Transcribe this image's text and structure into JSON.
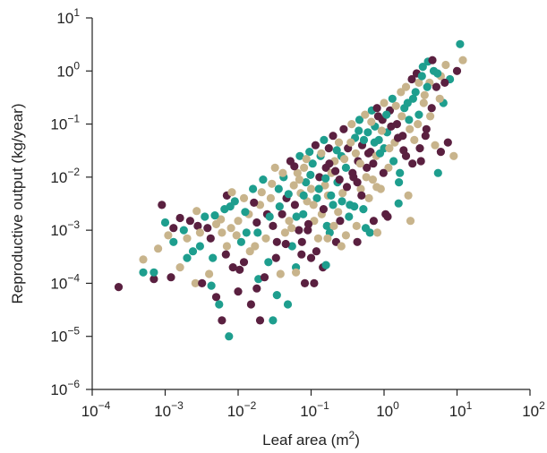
{
  "chart_data": {
    "type": "scatter",
    "title": "",
    "xlabel": "Leaf area (m",
    "xlabel_sup": "2",
    "xlabel_end": ")",
    "ylabel": "Reproductive output (kg/year)",
    "xscale": "log",
    "yscale": "log",
    "xlim": [
      0.0001,
      100
    ],
    "ylim": [
      1e-06,
      10
    ],
    "grid": false,
    "legend": "none",
    "x_ticks": [
      {
        "base": "10",
        "exp": "−4",
        "value": 0.0001
      },
      {
        "base": "10",
        "exp": "−3",
        "value": 0.001
      },
      {
        "base": "10",
        "exp": "−2",
        "value": 0.01
      },
      {
        "base": "10",
        "exp": "−1",
        "value": 0.1
      },
      {
        "base": "10",
        "exp": "0",
        "value": 1
      },
      {
        "base": "10",
        "exp": "1",
        "value": 10
      },
      {
        "base": "10",
        "exp": "2",
        "value": 100
      }
    ],
    "y_ticks": [
      {
        "base": "10",
        "exp": "−6",
        "value": 1e-06
      },
      {
        "base": "10",
        "exp": "−5",
        "value": 1e-05
      },
      {
        "base": "10",
        "exp": "−4",
        "value": 0.0001
      },
      {
        "base": "10",
        "exp": "−3",
        "value": 0.001
      },
      {
        "base": "10",
        "exp": "−2",
        "value": 0.01
      },
      {
        "base": "10",
        "exp": "−1",
        "value": 0.1
      },
      {
        "base": "10",
        "exp": "0",
        "value": 1
      },
      {
        "base": "10",
        "exp": "1",
        "value": 10
      }
    ],
    "colors": [
      "#5a2040",
      "#e6c84b",
      "#8aa04c",
      "#2f8b5b",
      "#e05a8a",
      "#cc5c7e",
      "#3aa6d8",
      "#1e9e8e",
      "#e08a3c",
      "#9b7bc0",
      "#b0b0b0",
      "#d8a0c0",
      "#6c8a2c",
      "#3c5c6c",
      "#c8b48c",
      "#88c8e8",
      "#e85a3c",
      "#0f5a3c",
      "#2c6cb8",
      "#d4d860",
      "#a05c9c",
      "#6cc85c"
    ],
    "points": [
      {
        "x": 0.00023,
        "y": 8.5e-05
      },
      {
        "x": 0.0005,
        "y": 0.00016
      },
      {
        "x": 0.0005,
        "y": 0.00028
      },
      {
        "x": 0.0007,
        "y": 0.00012
      },
      {
        "x": 0.0007,
        "y": 0.00016
      },
      {
        "x": 0.0008,
        "y": 0.00045
      },
      {
        "x": 0.0009,
        "y": 0.003
      },
      {
        "x": 0.001,
        "y": 0.0014
      },
      {
        "x": 0.0011,
        "y": 0.0008
      },
      {
        "x": 0.0013,
        "y": 0.0011
      },
      {
        "x": 0.0013,
        "y": 0.0006
      },
      {
        "x": 0.0016,
        "y": 0.0002
      },
      {
        "x": 0.0016,
        "y": 0.0017
      },
      {
        "x": 0.0018,
        "y": 0.001
      },
      {
        "x": 0.002,
        "y": 0.0007
      },
      {
        "x": 0.0022,
        "y": 0.0015
      },
      {
        "x": 0.0024,
        "y": 0.0004
      },
      {
        "x": 0.0026,
        "y": 0.0001
      },
      {
        "x": 0.0028,
        "y": 0.0012
      },
      {
        "x": 0.003,
        "y": 0.0005
      },
      {
        "x": 0.003,
        "y": 0.0009
      },
      {
        "x": 0.0032,
        "y": 0.0001
      },
      {
        "x": 0.0035,
        "y": 0.0018
      },
      {
        "x": 0.004,
        "y": 0.00015
      },
      {
        "x": 0.0042,
        "y": 0.0007
      },
      {
        "x": 0.0045,
        "y": 0.0003
      },
      {
        "x": 0.005,
        "y": 0.0013
      },
      {
        "x": 0.005,
        "y": 5.5e-05
      },
      {
        "x": 0.0055,
        "y": 4e-05
      },
      {
        "x": 0.006,
        "y": 0.0009
      },
      {
        "x": 0.006,
        "y": 2e-05
      },
      {
        "x": 0.0065,
        "y": 0.0025
      },
      {
        "x": 0.007,
        "y": 0.0005
      },
      {
        "x": 0.007,
        "y": 0.0045
      },
      {
        "x": 0.0075,
        "y": 1e-05
      },
      {
        "x": 0.008,
        "y": 0.0011
      },
      {
        "x": 0.0085,
        "y": 0.0002
      },
      {
        "x": 0.009,
        "y": 0.0035
      },
      {
        "x": 0.01,
        "y": 0.0015
      },
      {
        "x": 0.01,
        "y": 7e-05
      },
      {
        "x": 0.011,
        "y": 0.0006
      },
      {
        "x": 0.012,
        "y": 0.004
      },
      {
        "x": 0.012,
        "y": 0.00025
      },
      {
        "x": 0.013,
        "y": 0.0009
      },
      {
        "x": 0.014,
        "y": 0.002
      },
      {
        "x": 0.015,
        "y": 4e-05
      },
      {
        "x": 0.016,
        "y": 0.006
      },
      {
        "x": 0.017,
        "y": 0.0005
      },
      {
        "x": 0.018,
        "y": 0.0014
      },
      {
        "x": 0.019,
        "y": 0.00012
      },
      {
        "x": 0.02,
        "y": 0.003
      },
      {
        "x": 0.02,
        "y": 2e-05
      },
      {
        "x": 0.022,
        "y": 0.009
      },
      {
        "x": 0.024,
        "y": 0.0007
      },
      {
        "x": 0.025,
        "y": 0.002
      },
      {
        "x": 0.026,
        "y": 0.00025
      },
      {
        "x": 0.028,
        "y": 0.004
      },
      {
        "x": 0.03,
        "y": 0.0012
      },
      {
        "x": 0.03,
        "y": 2e-05
      },
      {
        "x": 0.032,
        "y": 0.015
      },
      {
        "x": 0.034,
        "y": 0.0006
      },
      {
        "x": 0.036,
        "y": 0.006
      },
      {
        "x": 0.038,
        "y": 0.00015
      },
      {
        "x": 0.04,
        "y": 0.002
      },
      {
        "x": 0.042,
        "y": 0.01
      },
      {
        "x": 0.044,
        "y": 0.0009
      },
      {
        "x": 0.046,
        "y": 0.004
      },
      {
        "x": 0.048,
        "y": 4e-05
      },
      {
        "x": 0.05,
        "y": 0.0015
      },
      {
        "x": 0.052,
        "y": 0.02
      },
      {
        "x": 0.055,
        "y": 0.0005
      },
      {
        "x": 0.058,
        "y": 0.007
      },
      {
        "x": 0.06,
        "y": 0.003
      },
      {
        "x": 0.062,
        "y": 0.0002
      },
      {
        "x": 0.065,
        "y": 0.012
      },
      {
        "x": 0.068,
        "y": 0.001
      },
      {
        "x": 0.07,
        "y": 0.025
      },
      {
        "x": 0.072,
        "y": 0.005
      },
      {
        "x": 0.075,
        "y": 0.0006
      },
      {
        "x": 0.078,
        "y": 0.002
      },
      {
        "x": 0.08,
        "y": 0.015
      },
      {
        "x": 0.082,
        "y": 0.0001
      },
      {
        "x": 0.085,
        "y": 0.008
      },
      {
        "x": 0.088,
        "y": 0.0035
      },
      {
        "x": 0.09,
        "y": 0.001
      },
      {
        "x": 0.095,
        "y": 0.03
      },
      {
        "x": 0.1,
        "y": 0.006
      },
      {
        "x": 0.1,
        "y": 0.0003
      },
      {
        "x": 0.105,
        "y": 0.018
      },
      {
        "x": 0.11,
        "y": 0.0015
      },
      {
        "x": 0.115,
        "y": 0.04
      },
      {
        "x": 0.12,
        "y": 0.004
      },
      {
        "x": 0.125,
        "y": 0.0007
      },
      {
        "x": 0.13,
        "y": 0.01
      },
      {
        "x": 0.135,
        "y": 0.025
      },
      {
        "x": 0.14,
        "y": 0.002
      },
      {
        "x": 0.145,
        "y": 0.0002
      },
      {
        "x": 0.15,
        "y": 0.05
      },
      {
        "x": 0.155,
        "y": 0.007
      },
      {
        "x": 0.16,
        "y": 0.015
      },
      {
        "x": 0.165,
        "y": 0.0012
      },
      {
        "x": 0.17,
        "y": 0.0045
      },
      {
        "x": 0.175,
        "y": 0.035
      },
      {
        "x": 0.18,
        "y": 0.0009
      },
      {
        "x": 0.19,
        "y": 0.012
      },
      {
        "x": 0.2,
        "y": 0.06
      },
      {
        "x": 0.2,
        "y": 0.003
      },
      {
        "x": 0.21,
        "y": 0.02
      },
      {
        "x": 0.22,
        "y": 0.0006
      },
      {
        "x": 0.23,
        "y": 0.008
      },
      {
        "x": 0.24,
        "y": 0.045
      },
      {
        "x": 0.25,
        "y": 0.0015
      },
      {
        "x": 0.26,
        "y": 0.025
      },
      {
        "x": 0.27,
        "y": 0.005
      },
      {
        "x": 0.28,
        "y": 0.08
      },
      {
        "x": 0.3,
        "y": 0.015
      },
      {
        "x": 0.3,
        "y": 0.0008
      },
      {
        "x": 0.32,
        "y": 0.035
      },
      {
        "x": 0.34,
        "y": 0.003
      },
      {
        "x": 0.36,
        "y": 0.1
      },
      {
        "x": 0.38,
        "y": 0.01
      },
      {
        "x": 0.4,
        "y": 0.055
      },
      {
        "x": 0.42,
        "y": 0.0012
      },
      {
        "x": 0.44,
        "y": 0.02
      },
      {
        "x": 0.46,
        "y": 0.12
      },
      {
        "x": 0.48,
        "y": 0.006
      },
      {
        "x": 0.5,
        "y": 0.04
      },
      {
        "x": 0.52,
        "y": 0.0025
      },
      {
        "x": 0.55,
        "y": 0.15
      },
      {
        "x": 0.58,
        "y": 0.015
      },
      {
        "x": 0.6,
        "y": 0.07
      },
      {
        "x": 0.62,
        "y": 0.004
      },
      {
        "x": 0.65,
        "y": 0.03
      },
      {
        "x": 0.68,
        "y": 0.18
      },
      {
        "x": 0.7,
        "y": 0.009
      },
      {
        "x": 0.72,
        "y": 0.0015
      },
      {
        "x": 0.75,
        "y": 0.09
      },
      {
        "x": 0.78,
        "y": 0.025
      },
      {
        "x": 0.8,
        "y": 0.2
      },
      {
        "x": 0.85,
        "y": 0.05
      },
      {
        "x": 0.9,
        "y": 0.006
      },
      {
        "x": 0.95,
        "y": 0.12
      },
      {
        "x": 1.0,
        "y": 0.035
      },
      {
        "x": 1.0,
        "y": 0.25
      },
      {
        "x": 1.05,
        "y": 0.002
      },
      {
        "x": 1.1,
        "y": 0.07
      },
      {
        "x": 1.15,
        "y": 0.015
      },
      {
        "x": 1.2,
        "y": 0.18
      },
      {
        "x": 1.3,
        "y": 0.3
      },
      {
        "x": 1.4,
        "y": 0.045
      },
      {
        "x": 1.5,
        "y": 0.1
      },
      {
        "x": 1.6,
        "y": 0.008
      },
      {
        "x": 1.7,
        "y": 0.4
      },
      {
        "x": 1.8,
        "y": 0.06
      },
      {
        "x": 1.9,
        "y": 0.2
      },
      {
        "x": 2.0,
        "y": 0.5
      },
      {
        "x": 2.0,
        "y": 0.025
      },
      {
        "x": 2.2,
        "y": 0.12
      },
      {
        "x": 2.3,
        "y": 0.0015
      },
      {
        "x": 2.4,
        "y": 0.7
      },
      {
        "x": 2.5,
        "y": 0.3
      },
      {
        "x": 2.6,
        "y": 0.05
      },
      {
        "x": 2.8,
        "y": 0.9
      },
      {
        "x": 3.0,
        "y": 0.15
      },
      {
        "x": 3.0,
        "y": 0.6
      },
      {
        "x": 3.2,
        "y": 0.02
      },
      {
        "x": 3.4,
        "y": 1.2
      },
      {
        "x": 3.6,
        "y": 0.35
      },
      {
        "x": 3.8,
        "y": 0.08
      },
      {
        "x": 4.0,
        "y": 1.5
      },
      {
        "x": 4.2,
        "y": 0.6
      },
      {
        "x": 4.5,
        "y": 0.2
      },
      {
        "x": 4.8,
        "y": 1.0
      },
      {
        "x": 5.0,
        "y": 0.04
      },
      {
        "x": 5.2,
        "y": 0.5
      },
      {
        "x": 5.5,
        "y": 0.012
      },
      {
        "x": 6.0,
        "y": 0.8
      },
      {
        "x": 6.0,
        "y": 0.03
      },
      {
        "x": 6.5,
        "y": 0.25
      },
      {
        "x": 7.0,
        "y": 1.3
      },
      {
        "x": 7.5,
        "y": 0.045
      },
      {
        "x": 8.0,
        "y": 0.7
      },
      {
        "x": 9.0,
        "y": 0.025
      },
      {
        "x": 10.0,
        "y": 1.0
      },
      {
        "x": 11.0,
        "y": 3.2
      },
      {
        "x": 12.0,
        "y": 1.6
      },
      {
        "x": 0.0012,
        "y": 0.00013
      },
      {
        "x": 0.002,
        "y": 0.0003
      },
      {
        "x": 0.0027,
        "y": 0.0023
      },
      {
        "x": 0.0038,
        "y": 0.0011
      },
      {
        "x": 0.0043,
        "y": 9e-05
      },
      {
        "x": 0.0058,
        "y": 0.0016
      },
      {
        "x": 0.0068,
        "y": 0.00035
      },
      {
        "x": 0.0078,
        "y": 0.0028
      },
      {
        "x": 0.0095,
        "y": 0.0008
      },
      {
        "x": 0.0105,
        "y": 0.00018
      },
      {
        "x": 0.0125,
        "y": 0.0022
      },
      {
        "x": 0.0145,
        "y": 0.0004
      },
      {
        "x": 0.0165,
        "y": 0.0033
      },
      {
        "x": 0.0185,
        "y": 0.0009
      },
      {
        "x": 0.021,
        "y": 0.0052
      },
      {
        "x": 0.023,
        "y": 0.00013
      },
      {
        "x": 0.027,
        "y": 0.0018
      },
      {
        "x": 0.029,
        "y": 0.0075
      },
      {
        "x": 0.033,
        "y": 0.0003
      },
      {
        "x": 0.037,
        "y": 0.0028
      },
      {
        "x": 0.041,
        "y": 0.012
      },
      {
        "x": 0.045,
        "y": 0.00055
      },
      {
        "x": 0.049,
        "y": 0.0048
      },
      {
        "x": 0.054,
        "y": 0.0011
      },
      {
        "x": 0.059,
        "y": 0.016
      },
      {
        "x": 0.063,
        "y": 0.0018
      },
      {
        "x": 0.069,
        "y": 0.009
      },
      {
        "x": 0.074,
        "y": 0.00035
      },
      {
        "x": 0.079,
        "y": 0.0045
      },
      {
        "x": 0.086,
        "y": 0.022
      },
      {
        "x": 0.092,
        "y": 0.0013
      },
      {
        "x": 0.098,
        "y": 0.011
      },
      {
        "x": 0.108,
        "y": 0.003
      },
      {
        "x": 0.118,
        "y": 0.0004
      },
      {
        "x": 0.128,
        "y": 0.006
      },
      {
        "x": 0.138,
        "y": 0.028
      },
      {
        "x": 0.148,
        "y": 0.0025
      },
      {
        "x": 0.158,
        "y": 0.0095
      },
      {
        "x": 0.168,
        "y": 0.0007
      },
      {
        "x": 0.178,
        "y": 0.018
      },
      {
        "x": 0.188,
        "y": 0.0045
      },
      {
        "x": 0.205,
        "y": 0.0012
      },
      {
        "x": 0.215,
        "y": 0.013
      },
      {
        "x": 0.225,
        "y": 0.032
      },
      {
        "x": 0.235,
        "y": 0.0022
      },
      {
        "x": 0.245,
        "y": 0.009
      },
      {
        "x": 0.265,
        "y": 0.0035
      },
      {
        "x": 0.285,
        "y": 0.022
      },
      {
        "x": 0.31,
        "y": 0.0065
      },
      {
        "x": 0.33,
        "y": 0.0018
      },
      {
        "x": 0.35,
        "y": 0.045
      },
      {
        "x": 0.37,
        "y": 0.012
      },
      {
        "x": 0.39,
        "y": 0.0028
      },
      {
        "x": 0.41,
        "y": 0.028
      },
      {
        "x": 0.43,
        "y": 0.008
      },
      {
        "x": 0.45,
        "y": 0.075
      },
      {
        "x": 0.47,
        "y": 0.018
      },
      {
        "x": 0.49,
        "y": 0.0045
      },
      {
        "x": 0.53,
        "y": 0.05
      },
      {
        "x": 0.57,
        "y": 0.01
      },
      {
        "x": 0.61,
        "y": 0.028
      },
      {
        "x": 0.64,
        "y": 0.0009
      },
      {
        "x": 0.67,
        "y": 0.11
      },
      {
        "x": 0.71,
        "y": 0.018
      },
      {
        "x": 0.74,
        "y": 0.045
      },
      {
        "x": 0.79,
        "y": 0.0065
      },
      {
        "x": 0.83,
        "y": 0.14
      },
      {
        "x": 0.88,
        "y": 0.028
      },
      {
        "x": 0.93,
        "y": 0.075
      },
      {
        "x": 0.98,
        "y": 0.012
      },
      {
        "x": 1.08,
        "y": 0.15
      },
      {
        "x": 1.18,
        "y": 0.035
      },
      {
        "x": 1.25,
        "y": 0.09
      },
      {
        "x": 1.35,
        "y": 0.02
      },
      {
        "x": 1.45,
        "y": 0.22
      },
      {
        "x": 1.55,
        "y": 0.055
      },
      {
        "x": 1.65,
        "y": 0.012
      },
      {
        "x": 1.75,
        "y": 0.14
      },
      {
        "x": 1.85,
        "y": 0.032
      },
      {
        "x": 2.1,
        "y": 0.25
      },
      {
        "x": 2.25,
        "y": 0.08
      },
      {
        "x": 2.45,
        "y": 0.018
      },
      {
        "x": 2.7,
        "y": 0.4
      },
      {
        "x": 2.9,
        "y": 0.1
      },
      {
        "x": 3.1,
        "y": 0.035
      },
      {
        "x": 3.3,
        "y": 0.8
      },
      {
        "x": 3.5,
        "y": 0.25
      },
      {
        "x": 3.7,
        "y": 0.06
      },
      {
        "x": 3.9,
        "y": 0.5
      },
      {
        "x": 4.3,
        "y": 0.14
      },
      {
        "x": 4.6,
        "y": 1.6
      },
      {
        "x": 5.4,
        "y": 0.9
      },
      {
        "x": 5.8,
        "y": 0.3
      },
      {
        "x": 6.8,
        "y": 0.6
      },
      {
        "x": 0.0048,
        "y": 0.0019
      },
      {
        "x": 0.0082,
        "y": 0.0052
      },
      {
        "x": 0.018,
        "y": 8e-05
      },
      {
        "x": 0.034,
        "y": 6e-05
      },
      {
        "x": 0.062,
        "y": 0.00016
      },
      {
        "x": 0.11,
        "y": 0.0001
      },
      {
        "x": 0.16,
        "y": 0.00022
      },
      {
        "x": 0.26,
        "y": 0.0005
      },
      {
        "x": 0.43,
        "y": 0.0006
      },
      {
        "x": 0.56,
        "y": 0.0011
      },
      {
        "x": 0.81,
        "y": 0.0009
      },
      {
        "x": 1.12,
        "y": 0.0018
      },
      {
        "x": 1.58,
        "y": 0.0032
      },
      {
        "x": 2.15,
        "y": 0.0045
      }
    ]
  }
}
